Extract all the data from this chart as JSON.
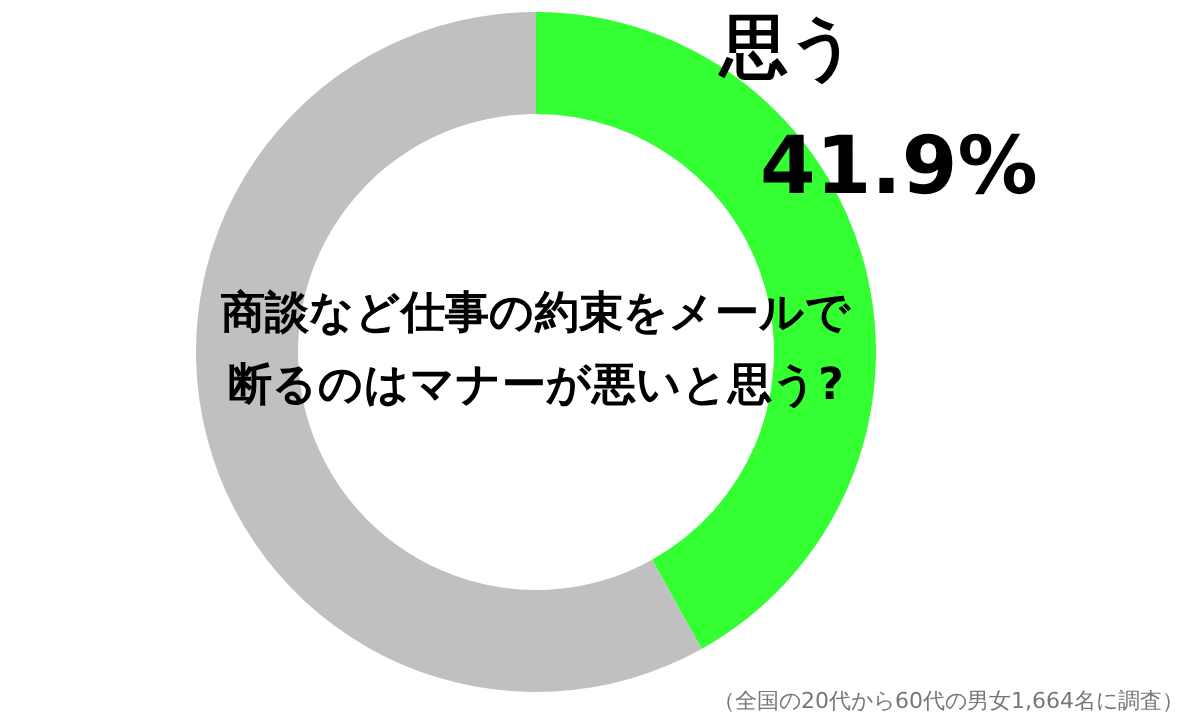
{
  "chart_data": {
    "type": "donut",
    "title": "商談など仕事の約束をメールで断るのはマナーが悪いと思う?",
    "categories": [
      "思う",
      null
    ],
    "values": [
      41.9,
      58.1
    ],
    "colors": [
      "#33ff33",
      "#c0c0c0"
    ],
    "value_labels": [
      "41.9%",
      null
    ],
    "legend": false,
    "annotations": [
      "（全国の20代から60代の男女1,664名に調査）"
    ]
  }
}
